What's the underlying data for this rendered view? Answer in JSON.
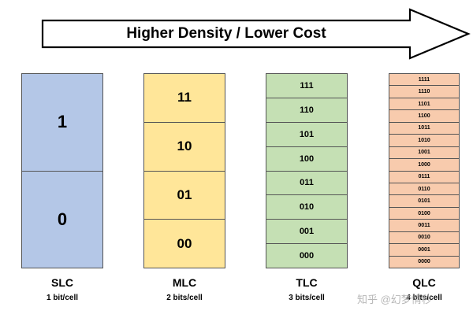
{
  "banner": {
    "text": "Higher Density / Lower Cost"
  },
  "columns": [
    {
      "name": "SLC",
      "subtitle": "1 bit/cell",
      "color": "#b4c7e7",
      "cells": [
        "1",
        "0"
      ]
    },
    {
      "name": "MLC",
      "subtitle": "2 bits/cell",
      "color": "#ffe699",
      "cells": [
        "11",
        "10",
        "01",
        "00"
      ]
    },
    {
      "name": "TLC",
      "subtitle": "3 bits/cell",
      "color": "#c5e0b4",
      "cells": [
        "111",
        "110",
        "101",
        "100",
        "011",
        "010",
        "001",
        "000"
      ]
    },
    {
      "name": "QLC",
      "subtitle": "4 bits/cell",
      "color": "#f8cbad",
      "cells": [
        "1111",
        "1110",
        "1101",
        "1100",
        "1011",
        "1010",
        "1001",
        "1000",
        "0111",
        "0110",
        "0101",
        "0100",
        "0011",
        "0010",
        "0001",
        "0000"
      ]
    }
  ],
  "watermark": {
    "text": "知乎 @幻梦情秒"
  }
}
